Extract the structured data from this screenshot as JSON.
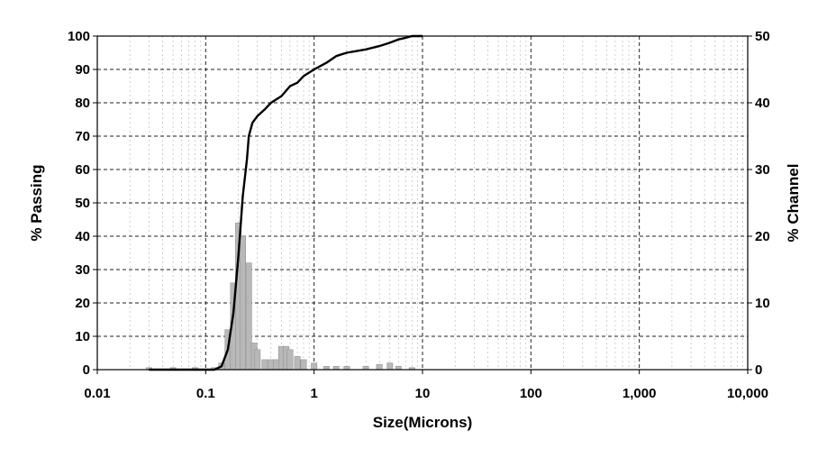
{
  "chart_data": {
    "type": "line",
    "xlabel": "Size(Microns)",
    "ylabel_left": "% Passing",
    "ylabel_right": "% Channel",
    "x_scale": "log",
    "xlim": [
      0.01,
      10000
    ],
    "ylim_left": [
      0,
      100
    ],
    "ylim_right": [
      0,
      50
    ],
    "grid": true,
    "x_tick_values": [
      0.01,
      0.1,
      1,
      10,
      100,
      1000,
      10000
    ],
    "x_ticks": [
      "0.01",
      "0.1",
      "1",
      "10",
      "100",
      "1,000",
      "10,000"
    ],
    "y_left_ticks": [
      "0",
      "10",
      "20",
      "30",
      "40",
      "50",
      "60",
      "70",
      "80",
      "90",
      "100"
    ],
    "y_right_ticks": [
      "0",
      "10",
      "20",
      "30",
      "40",
      "50"
    ],
    "series": [
      {
        "axis": "left",
        "style": "line",
        "x": [
          0.03,
          0.1,
          0.12,
          0.14,
          0.16,
          0.18,
          0.2,
          0.22,
          0.24,
          0.25,
          0.27,
          0.3,
          0.35,
          0.4,
          0.5,
          0.6,
          0.7,
          0.8,
          1.0,
          1.3,
          1.6,
          2.0,
          3.0,
          4.0,
          5.0,
          6.0,
          7.0,
          8.0,
          10.0
        ],
        "values": [
          0,
          0,
          0,
          1,
          6,
          17,
          34,
          52,
          63,
          70,
          74,
          76,
          78,
          80,
          82,
          85,
          86,
          88,
          90,
          92,
          94,
          95,
          96,
          97,
          98,
          99,
          99.5,
          100,
          100
        ]
      },
      {
        "axis": "right",
        "style": "bars",
        "x": [
          0.03,
          0.05,
          0.08,
          0.12,
          0.14,
          0.16,
          0.18,
          0.2,
          0.22,
          0.25,
          0.28,
          0.3,
          0.35,
          0.4,
          0.45,
          0.5,
          0.55,
          0.6,
          0.7,
          0.8,
          1.0,
          1.3,
          1.6,
          2.0,
          3.0,
          4.0,
          5.0,
          6.0,
          8.0
        ],
        "values": [
          0.3,
          0.3,
          0.3,
          0.3,
          1,
          6,
          13,
          22,
          20,
          16,
          4,
          3,
          1.5,
          1.5,
          1.5,
          3.5,
          3.5,
          3,
          2,
          1.5,
          1,
          0.5,
          0.5,
          0.5,
          0.5,
          0.8,
          1,
          0.5,
          0.3
        ]
      }
    ]
  }
}
